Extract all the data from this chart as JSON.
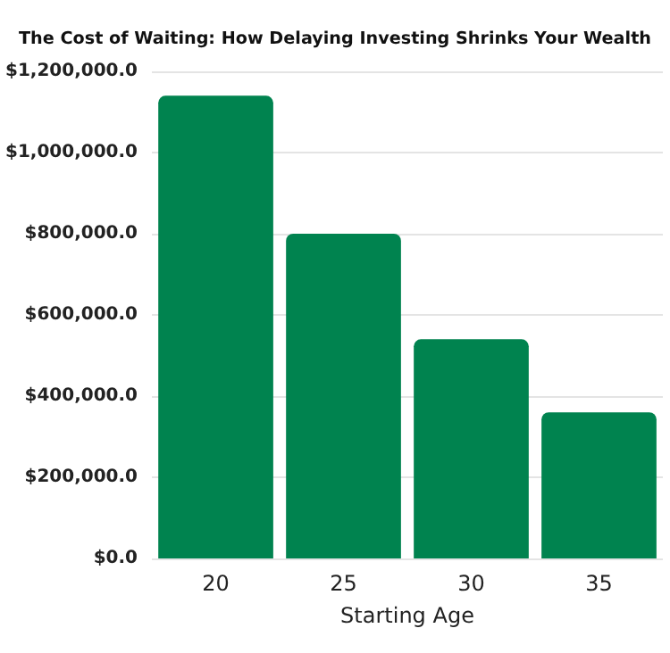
{
  "chart_data": {
    "type": "bar",
    "title": "The Cost of Waiting: How Delaying Investing Shrinks Your Wealth",
    "xlabel": "Starting Age",
    "categories": [
      "20",
      "25",
      "30",
      "35"
    ],
    "values": [
      1140000,
      800000,
      540000,
      360000
    ],
    "color": "#00834f",
    "ylim": [
      0,
      1200000
    ],
    "yticks": [
      {
        "value": 0,
        "label": "$0.0"
      },
      {
        "value": 200000,
        "label": "$200,000.0"
      },
      {
        "value": 400000,
        "label": "$400,000.0"
      },
      {
        "value": 600000,
        "label": "$600,000.0"
      },
      {
        "value": 800000,
        "label": "$800,000.0"
      },
      {
        "value": 1000000,
        "label": "$1,000,000.0"
      },
      {
        "value": 1200000,
        "label": "$1,200,000.0"
      }
    ],
    "grid": "y"
  }
}
